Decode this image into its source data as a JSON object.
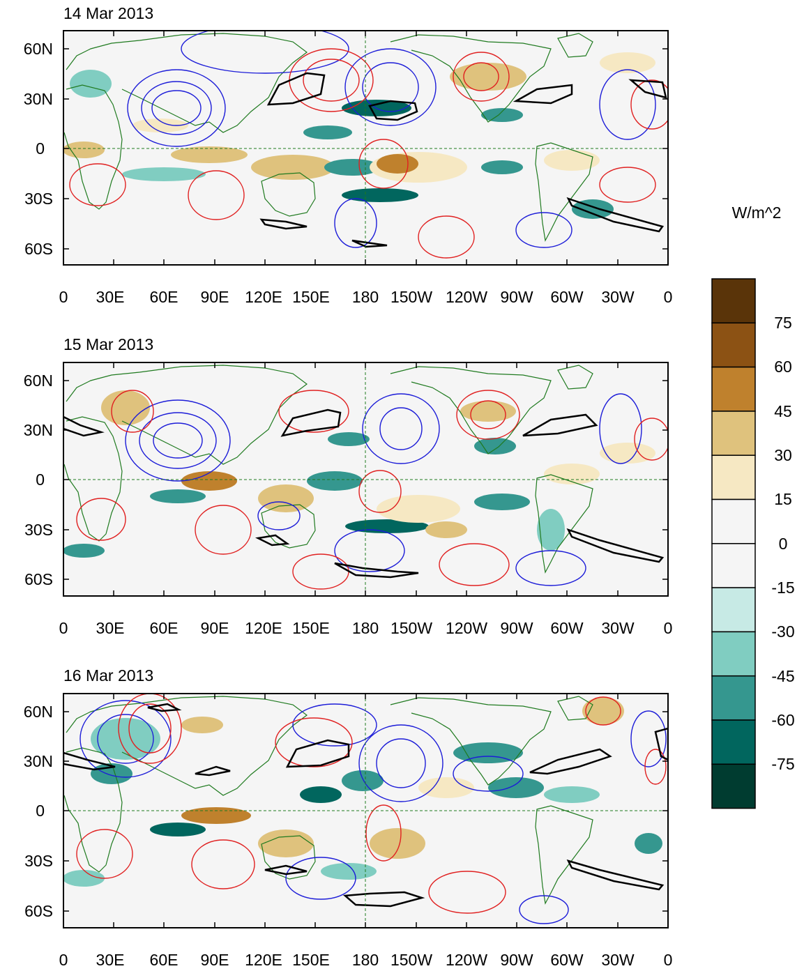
{
  "figure": {
    "panels": [
      {
        "title": "14 Mar 2013"
      },
      {
        "title": "15 Mar 2013"
      },
      {
        "title": "16 Mar 2013"
      }
    ],
    "lat_labels": [
      "60N",
      "30N",
      "0",
      "30S",
      "60S"
    ],
    "lon_labels": [
      "0",
      "30E",
      "60E",
      "90E",
      "120E",
      "150E",
      "180",
      "150W",
      "120W",
      "90W",
      "60W",
      "30W",
      "0"
    ]
  },
  "colorbar": {
    "units": "W/m^2",
    "levels": [
      "75",
      "60",
      "45",
      "30",
      "15",
      "0",
      "-15",
      "-30",
      "-45",
      "-60",
      "-75"
    ],
    "colors": [
      "#5a3409",
      "#8c5214",
      "#bf812d",
      "#dfc27d",
      "#f6e8c3",
      "#f5f5f5",
      "#f5f5f5",
      "#c7eae5",
      "#80cdc1",
      "#35978f",
      "#01665e",
      "#003c30"
    ]
  },
  "colors": {
    "positive_contour": "#e02020",
    "negative_contour": "#1c1cd8",
    "coastline": "#1f7a1f",
    "threshold_contour": "#000000",
    "ocean_background": "#f5f5f5"
  }
}
